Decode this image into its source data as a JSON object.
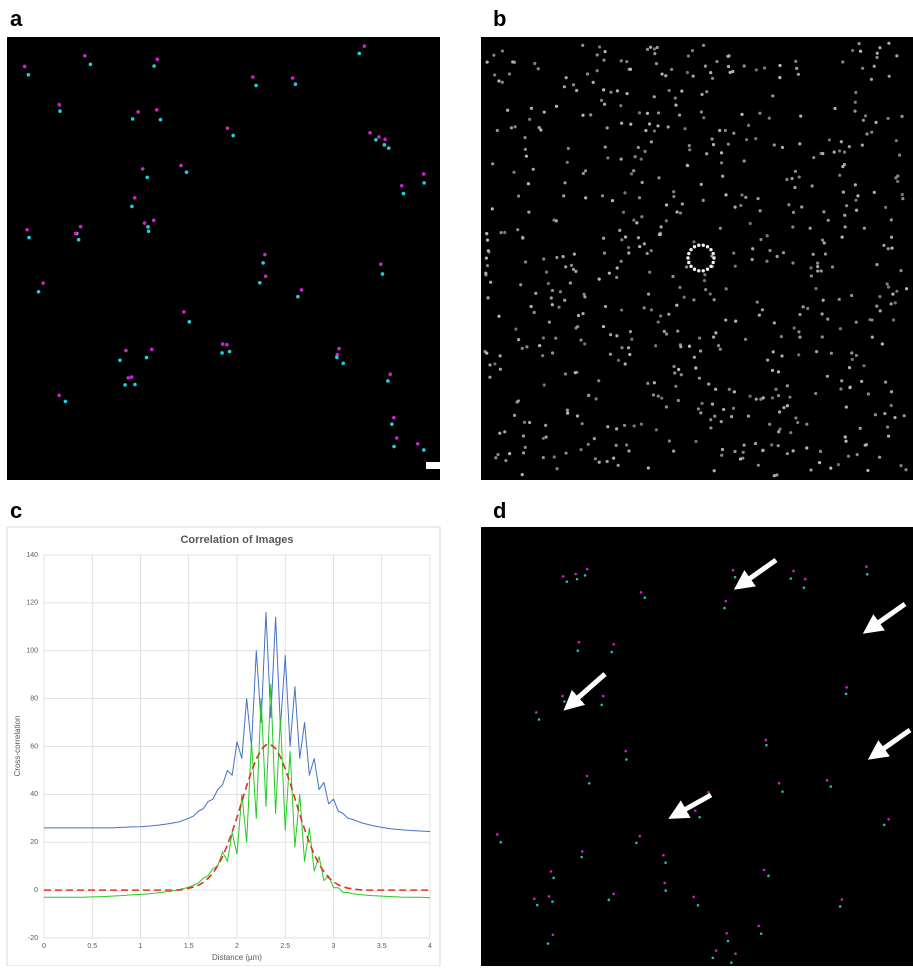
{
  "panel_labels": [
    "a",
    "b",
    "c",
    "d"
  ],
  "chart_data": {
    "type": "line",
    "title": "Correlation of Images",
    "x_label": "Distance (µm)",
    "y_label": "Cross-correlation",
    "x": [
      0,
      0.1,
      0.2,
      0.3,
      0.4,
      0.5,
      0.6,
      0.7,
      0.8,
      0.9,
      1.0,
      1.1,
      1.2,
      1.3,
      1.4,
      1.5,
      1.55,
      1.6,
      1.65,
      1.7,
      1.75,
      1.8,
      1.85,
      1.9,
      1.95,
      2.0,
      2.05,
      2.1,
      2.15,
      2.2,
      2.25,
      2.3,
      2.35,
      2.4,
      2.45,
      2.5,
      2.55,
      2.6,
      2.65,
      2.7,
      2.75,
      2.8,
      2.85,
      2.9,
      2.95,
      3.0,
      3.05,
      3.1,
      3.15,
      3.2,
      3.3,
      3.4,
      3.5,
      3.6,
      3.7,
      3.8,
      3.9,
      4.0
    ],
    "series": [
      {
        "color": "#4472c4",
        "style": "solid",
        "values": [
          26,
          26,
          26,
          26,
          26,
          26,
          26,
          26,
          26.2,
          26.4,
          26.5,
          26.8,
          27.2,
          27.8,
          28.5,
          30,
          31,
          33,
          34,
          37,
          38,
          42,
          44,
          50,
          48,
          62,
          55,
          80,
          60,
          100,
          70,
          116,
          72,
          114,
          68,
          98,
          60,
          85,
          55,
          70,
          48,
          55,
          42,
          45,
          36,
          38,
          33,
          32,
          30,
          29.5,
          28,
          27,
          26.2,
          25.6,
          25.2,
          24.9,
          24.7,
          24.5
        ]
      },
      {
        "color": "#22cc22",
        "style": "solid",
        "values": [
          -3,
          -3,
          -3,
          -3,
          -3,
          -2.8,
          -2.7,
          -2.5,
          -2.3,
          -2,
          -1.8,
          -1.5,
          -1,
          -0.5,
          0.2,
          1.2,
          2,
          3,
          5,
          6,
          9,
          10,
          16,
          12,
          24,
          15,
          40,
          20,
          62,
          30,
          80,
          35,
          86,
          32,
          72,
          25,
          58,
          18,
          40,
          12,
          26,
          8,
          14,
          4,
          6,
          1,
          1,
          -1,
          -1,
          -1.5,
          -2,
          -2.3,
          -2.5,
          -2.7,
          -2.9,
          -3,
          -3,
          -3.2
        ]
      },
      {
        "color": "#e03020",
        "style": "dashed",
        "values": [
          0,
          0,
          0,
          0,
          0,
          0,
          0,
          0,
          0,
          0,
          0,
          0,
          0,
          0,
          0,
          0.8,
          1.3,
          2.0,
          3.2,
          4.9,
          7.1,
          10.2,
          14.0,
          18.8,
          24.3,
          30.4,
          37.0,
          43.5,
          49.6,
          54.8,
          58.6,
          60.7,
          60.8,
          59.1,
          55.6,
          50.7,
          44.8,
          38.3,
          31.7,
          25.5,
          19.8,
          14.9,
          10.9,
          7.7,
          5.2,
          3.5,
          2.2,
          1.4,
          0.8,
          0.5,
          0,
          0,
          0,
          0,
          0,
          0,
          0,
          0
        ]
      }
    ],
    "xlim": [
      0,
      4
    ],
    "ylim": [
      -20,
      140
    ],
    "xticks": [
      0,
      0.5,
      1,
      1.5,
      2,
      2.5,
      3,
      3.5,
      4
    ],
    "yticks": [
      -20,
      0,
      20,
      40,
      60,
      80,
      100,
      120,
      140
    ],
    "grid": true
  }
}
